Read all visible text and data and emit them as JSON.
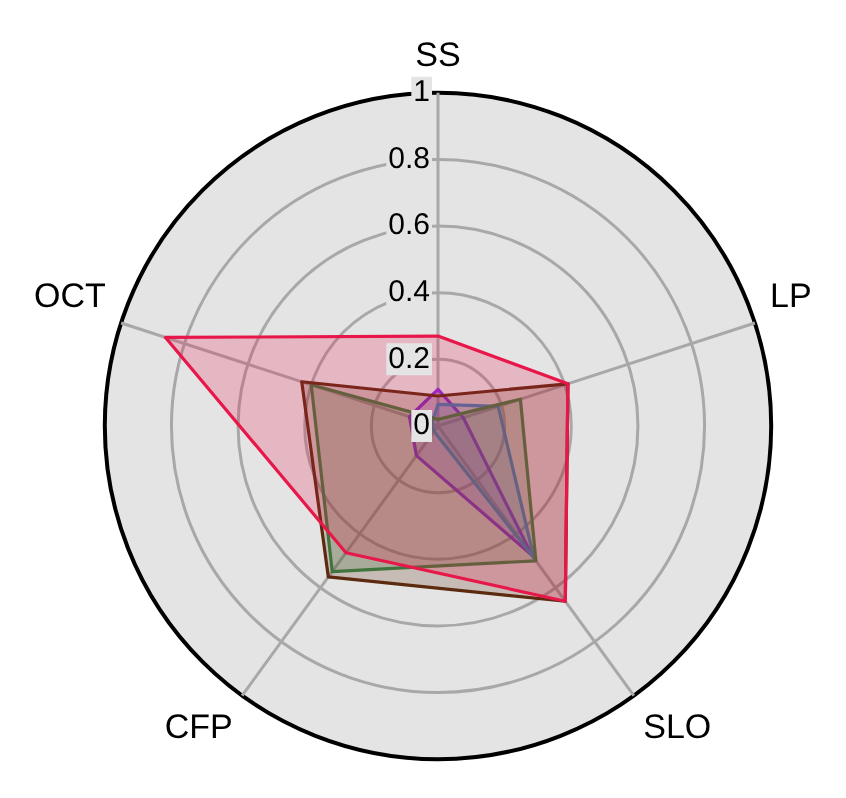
{
  "chart_data": {
    "type": "radar",
    "categories": [
      "SS",
      "LP",
      "SLO",
      "CFP",
      "OCT"
    ],
    "ylim": [
      0,
      1
    ],
    "yticks": [
      0,
      0.2,
      0.4,
      0.6,
      0.8,
      1
    ],
    "grid": true,
    "legend": false,
    "marker": "none",
    "series": [
      {
        "color": "#e8174a",
        "values": [
          0.27,
          0.41,
          0.65,
          0.47,
          0.86
        ]
      },
      {
        "color": "#5c2a0e",
        "values": [
          0.09,
          0.41,
          0.65,
          0.56,
          0.43
        ]
      },
      {
        "color": "#3a8a4a",
        "values": [
          0.02,
          0.26,
          0.5,
          0.54,
          0.4
        ]
      },
      {
        "color": "#3c8fd6",
        "values": [
          0.065,
          0.19,
          0.49,
          0.02,
          0.02
        ]
      },
      {
        "color": "#8a2be2",
        "values": [
          0.11,
          0.08,
          0.48,
          0.11,
          0.09
        ]
      }
    ]
  }
}
